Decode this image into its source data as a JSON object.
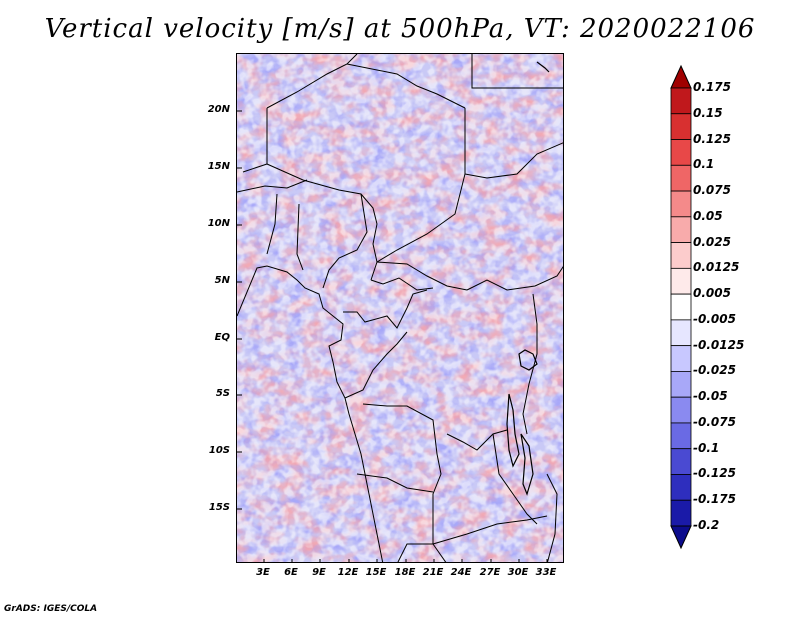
{
  "title": "Vertical velocity [m/s] at 500hPa, VT: 2020022106",
  "credit": "GrADS: IGES/COLA",
  "map": {
    "lat_labels": [
      "20N",
      "15N",
      "10N",
      "5N",
      "EQ",
      "5S",
      "10S",
      "15S"
    ],
    "lon_labels": [
      "3E",
      "6E",
      "9E",
      "12E",
      "15E",
      "18E",
      "21E",
      "24E",
      "27E",
      "30E",
      "33E"
    ]
  },
  "colorbar": {
    "labels": [
      "0.175",
      "0.15",
      "0.125",
      "0.1",
      "0.075",
      "0.05",
      "0.025",
      "0.0125",
      "0.005",
      "-0.005",
      "-0.0125",
      "-0.025",
      "-0.05",
      "-0.075",
      "-0.1",
      "-0.125",
      "-0.175",
      "-0.2"
    ],
    "colors": [
      "#a00000",
      "#c0181c",
      "#d83030",
      "#e84848",
      "#ef6666",
      "#f48a8a",
      "#f8abab",
      "#fccccc",
      "#feeaea",
      "#ffffff",
      "#e6e6ff",
      "#c8c8ff",
      "#a8a8f8",
      "#8a8af0",
      "#6a6ae4",
      "#4a4ad2",
      "#2e2ebe",
      "#1a1aa8",
      "#0c0c8c"
    ]
  }
}
